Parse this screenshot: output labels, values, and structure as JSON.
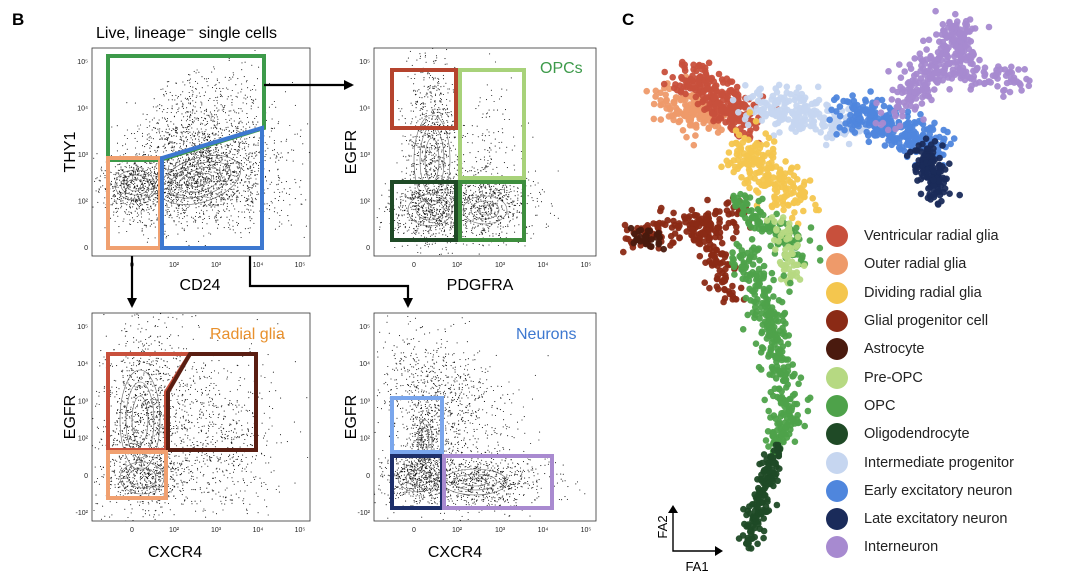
{
  "panel_labels": {
    "b": "B",
    "c": "C"
  },
  "panel_b": {
    "title": "Live, lineage⁻ single cells",
    "plots": {
      "main": {
        "ylabel": "THY1",
        "xlabel": "CD24",
        "yticks": [
          "10⁵",
          "10⁴",
          "10³",
          "10²",
          "0"
        ],
        "xticks": [
          "0",
          "10²",
          "10³",
          "10⁴",
          "10⁵"
        ]
      },
      "opc": {
        "ylabel": "EGFR",
        "xlabel": "PDGFRA",
        "gate_label": "OPCs",
        "yticks": [
          "10⁵",
          "10⁴",
          "10³",
          "10²",
          "0"
        ],
        "xticks": [
          "0",
          "10²",
          "10³",
          "10⁴",
          "10⁵"
        ]
      },
      "radial": {
        "ylabel": "EGFR",
        "xlabel": "CXCR4",
        "gate_label": "Radial glia",
        "yticks": [
          "10⁵",
          "10⁴",
          "10³",
          "10²",
          "0",
          "-10²"
        ],
        "xticks": [
          "0",
          "10²",
          "10³",
          "10⁴",
          "10⁵"
        ]
      },
      "neuron": {
        "ylabel": "EGFR",
        "xlabel": "CXCR4",
        "gate_label": "Neurons",
        "yticks": [
          "10⁵",
          "10⁴",
          "10³",
          "10²",
          "0",
          "-10²"
        ],
        "xticks": [
          "0",
          "10²",
          "10³",
          "10⁴",
          "10⁵"
        ]
      }
    }
  },
  "panel_c": {
    "axis_labels": {
      "x": "FA1",
      "y": "FA2"
    },
    "legend": [
      {
        "label": "Ventricular radial glia",
        "color": "#c8503c"
      },
      {
        "label": "Outer radial glia",
        "color": "#ee9a6a"
      },
      {
        "label": "Dividing radial glia",
        "color": "#f4c64e"
      },
      {
        "label": "Glial progenitor cell",
        "color": "#8b2a15"
      },
      {
        "label": "Astrocyte",
        "color": "#4a1a0e"
      },
      {
        "label": "Pre-OPC",
        "color": "#b6d982"
      },
      {
        "label": "OPC",
        "color": "#4ea24a"
      },
      {
        "label": "Oligodendrocyte",
        "color": "#1f4a26"
      },
      {
        "label": "Intermediate progenitor",
        "color": "#c6d6f0"
      },
      {
        "label": "Early excitatory neuron",
        "color": "#4f86dd"
      },
      {
        "label": "Late excitatory neuron",
        "color": "#1a2b5a"
      },
      {
        "label": "Interneuron",
        "color": "#a78ad0"
      }
    ]
  },
  "colors": {
    "thy1_gate": "#3d9a4a",
    "orange_gate": "#f0a070",
    "blue_gate": "#3d78d0",
    "red_gate": "#b5442e",
    "lightgreen_gate": "#a8d27a",
    "darkgreen_gate": "#1f4a26",
    "midgreen_gate": "#3e8e3e",
    "darkbrown_gate": "#5a1e12",
    "navy_gate": "#1d2f6a",
    "purple_gate": "#a98ad0",
    "lightblue_gate": "#7aa6ec",
    "radial_label": "#e8902c",
    "opc_label": "#3d9a4a",
    "neuron_label": "#3d78d0"
  }
}
